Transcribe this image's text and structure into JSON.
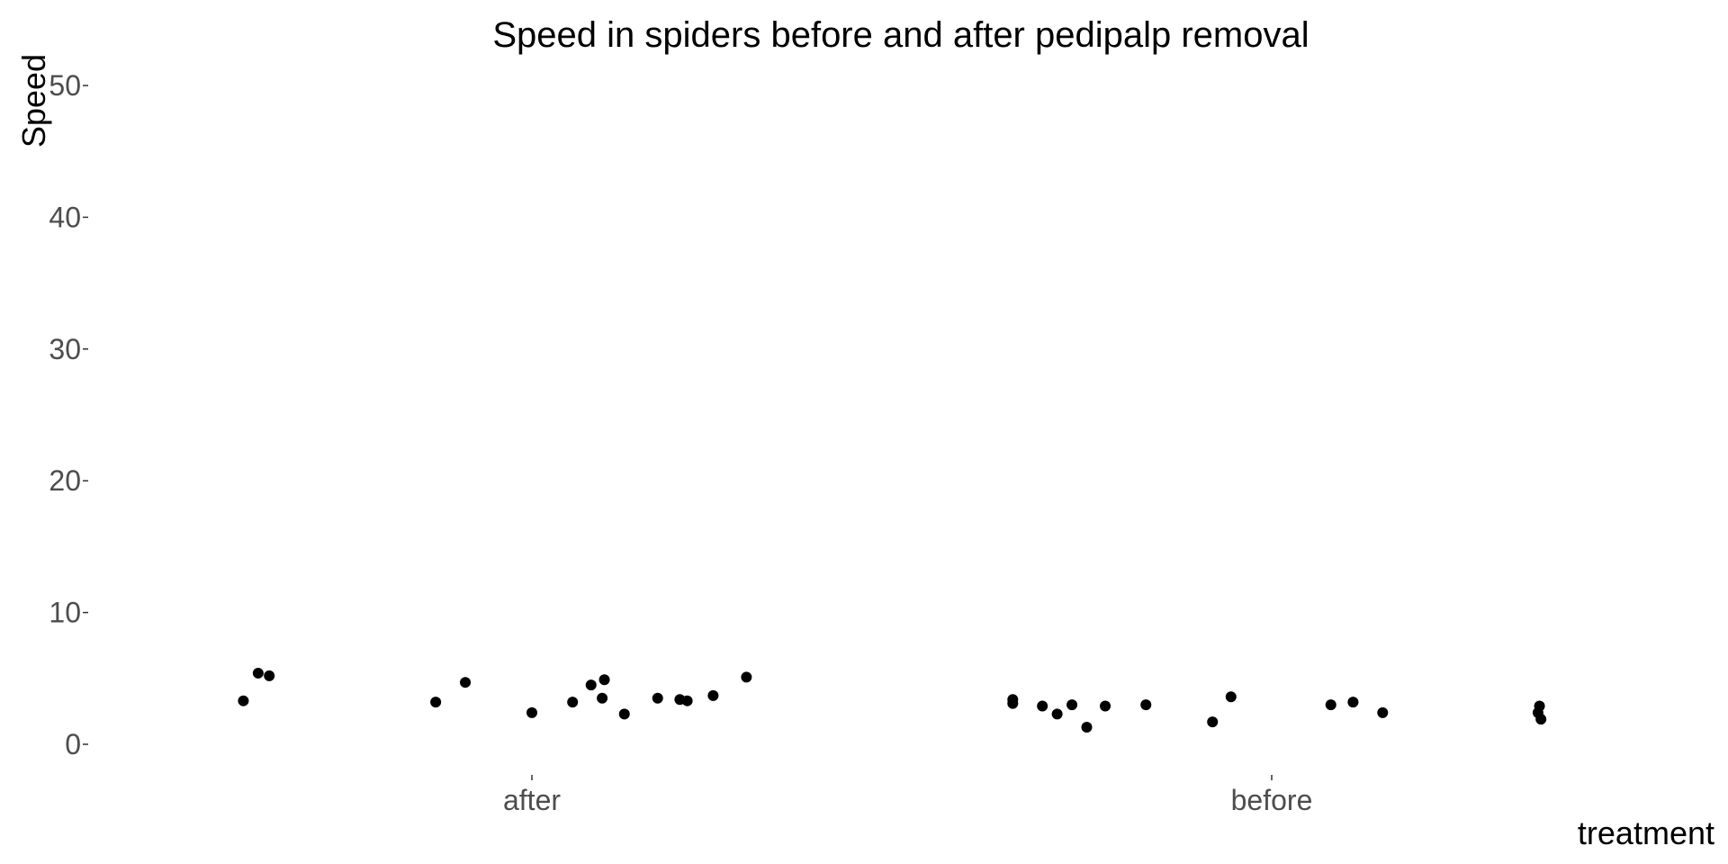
{
  "chart_data": {
    "type": "scatter",
    "title": "Speed in spiders before and after pedipalp removal",
    "xlabel": "treatment",
    "ylabel": "Speed",
    "categories": [
      "after",
      "before"
    ],
    "ylim": [
      0,
      50
    ],
    "yticks": [
      0,
      10,
      20,
      30,
      40,
      50
    ],
    "grid": false,
    "point_color": "#000000",
    "series": [
      {
        "category": "after",
        "points": [
          {
            "jitter": -0.39,
            "y": 3.3
          },
          {
            "jitter": -0.37,
            "y": 5.4
          },
          {
            "jitter": -0.355,
            "y": 5.2
          },
          {
            "jitter": -0.13,
            "y": 3.2
          },
          {
            "jitter": -0.09,
            "y": 4.7
          },
          {
            "jitter": 0.0,
            "y": 2.4
          },
          {
            "jitter": 0.055,
            "y": 3.2
          },
          {
            "jitter": 0.08,
            "y": 4.5
          },
          {
            "jitter": 0.095,
            "y": 3.5
          },
          {
            "jitter": 0.098,
            "y": 4.9
          },
          {
            "jitter": 0.125,
            "y": 2.3
          },
          {
            "jitter": 0.17,
            "y": 3.5
          },
          {
            "jitter": 0.2,
            "y": 3.4
          },
          {
            "jitter": 0.21,
            "y": 3.3
          },
          {
            "jitter": 0.245,
            "y": 3.7
          },
          {
            "jitter": 0.29,
            "y": 5.1
          }
        ]
      },
      {
        "category": "before",
        "points": [
          {
            "jitter": -0.35,
            "y": 3.4
          },
          {
            "jitter": -0.35,
            "y": 3.1
          },
          {
            "jitter": -0.31,
            "y": 2.9
          },
          {
            "jitter": -0.29,
            "y": 2.3
          },
          {
            "jitter": -0.27,
            "y": 3.0
          },
          {
            "jitter": -0.25,
            "y": 1.3
          },
          {
            "jitter": -0.225,
            "y": 2.9
          },
          {
            "jitter": -0.17,
            "y": 3.0
          },
          {
            "jitter": -0.08,
            "y": 1.7
          },
          {
            "jitter": -0.055,
            "y": 3.6
          },
          {
            "jitter": 0.08,
            "y": 3.0
          },
          {
            "jitter": 0.11,
            "y": 3.2
          },
          {
            "jitter": 0.15,
            "y": 2.4
          },
          {
            "jitter": 0.36,
            "y": 2.4
          },
          {
            "jitter": 0.362,
            "y": 2.9
          },
          {
            "jitter": 0.364,
            "y": 1.9
          }
        ]
      }
    ]
  }
}
